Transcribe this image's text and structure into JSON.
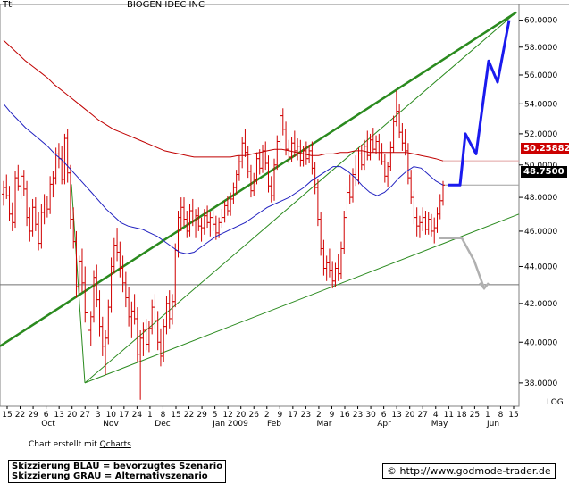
{
  "header": {
    "ticker_label": "Ttl",
    "title": "BIOGEN IDEC INC"
  },
  "footer": {
    "credit_prefix": "Chart erstellt mit ",
    "credit_link": "Qcharts",
    "legend_blue": "Skizzierung BLAU = bevorzugtes Szenario",
    "legend_gray": "Skizzierung GRAU = Alternativszenario",
    "website": "© http://www.godmode-trader.de"
  },
  "chart_data": {
    "type": "candlestick",
    "title": "BIOGEN IDEC INC",
    "y_scale": "log",
    "y_scale_label": "LOG",
    "ylim": [
      36.9,
      61.2
    ],
    "y_ticks": [
      38,
      40,
      42,
      44,
      46,
      48,
      50,
      52,
      54,
      56,
      58,
      60
    ],
    "y_tick_labels": [
      "38.0000",
      "40.0000",
      "42.0000",
      "44.0000",
      "46.0000",
      "48.0000",
      "50.0000",
      "52.0000",
      "54.0000",
      "56.0000",
      "58.0000",
      "60.0000"
    ],
    "x_day_labels": [
      "15",
      "22",
      "29",
      "6",
      "13",
      "20",
      "27",
      "3",
      "10",
      "17",
      "24",
      "1",
      "8",
      "15",
      "22",
      "29",
      "5",
      "12",
      "20",
      "26",
      "2",
      "9",
      "17",
      "23",
      "2",
      "9",
      "16",
      "23",
      "30",
      "6",
      "13",
      "20",
      "27",
      "4",
      "11",
      "18",
      "25",
      "1",
      "8",
      "15"
    ],
    "x_month_labels": [
      "Oct",
      "Nov",
      "Dec",
      "Jan 2009",
      "Feb",
      "Mar",
      "Apr",
      "May",
      "Jun"
    ],
    "last_close": 48.75,
    "last_close_label": "48.7500",
    "ma_long_value": 50.25882,
    "ma_long_label": "50.25882",
    "support_level": 43.0,
    "series": [
      {
        "type": "ohlc",
        "color": "#d00000",
        "points": [
          [
            48.2,
            49.0,
            47.5,
            48.6
          ],
          [
            48.6,
            49.4,
            47.9,
            48.1
          ],
          [
            48.1,
            48.7,
            46.6,
            47.0
          ],
          [
            47.0,
            47.7,
            46.0,
            46.5
          ],
          [
            46.5,
            49.6,
            46.2,
            49.2
          ],
          [
            49.2,
            50.0,
            48.4,
            48.7
          ],
          [
            48.7,
            49.5,
            47.9,
            49.3
          ],
          [
            49.3,
            49.7,
            48.1,
            48.5
          ],
          [
            48.5,
            49.0,
            46.3,
            46.8
          ],
          [
            46.8,
            47.4,
            45.4,
            46.0
          ],
          [
            46.0,
            47.9,
            45.7,
            47.4
          ],
          [
            47.4,
            48.0,
            46.0,
            46.4
          ],
          [
            46.4,
            47.1,
            44.9,
            45.3
          ],
          [
            45.3,
            47.6,
            45.0,
            47.1
          ],
          [
            47.1,
            48.2,
            46.4,
            47.6
          ],
          [
            47.6,
            48.1,
            46.8,
            47.3
          ],
          [
            47.3,
            49.3,
            47.0,
            48.8
          ],
          [
            48.8,
            49.6,
            48.0,
            49.2
          ],
          [
            49.2,
            51.1,
            48.8,
            50.7
          ],
          [
            50.7,
            51.4,
            49.8,
            50.4
          ],
          [
            50.4,
            51.2,
            48.8,
            49.1
          ],
          [
            49.1,
            52.0,
            48.8,
            51.7
          ],
          [
            51.7,
            52.3,
            48.9,
            49.5
          ],
          [
            49.5,
            50.0,
            46.1,
            46.7
          ],
          [
            46.7,
            47.4,
            45.0,
            45.4
          ],
          [
            45.4,
            46.0,
            42.3,
            42.9
          ],
          [
            42.9,
            44.6,
            42.5,
            44.3
          ],
          [
            44.3,
            45.0,
            42.6,
            43.1
          ],
          [
            43.1,
            44.0,
            41.0,
            41.5
          ],
          [
            41.5,
            42.4,
            40.0,
            40.6
          ],
          [
            40.6,
            41.6,
            39.8,
            41.3
          ],
          [
            41.3,
            43.8,
            41.0,
            43.4
          ],
          [
            43.4,
            44.1,
            41.8,
            42.2
          ],
          [
            42.2,
            42.7,
            40.3,
            40.8
          ],
          [
            40.8,
            41.3,
            39.3,
            39.8
          ],
          [
            39.8,
            40.6,
            38.4,
            40.2
          ],
          [
            40.2,
            42.2,
            39.9,
            41.8
          ],
          [
            41.8,
            44.5,
            41.5,
            44.0
          ],
          [
            44.0,
            45.6,
            43.6,
            45.2
          ],
          [
            45.2,
            46.2,
            44.3,
            44.8
          ],
          [
            44.8,
            45.4,
            43.4,
            43.9
          ],
          [
            43.9,
            44.6,
            42.6,
            43.1
          ],
          [
            43.1,
            43.7,
            41.8,
            42.3
          ],
          [
            42.3,
            42.9,
            40.8,
            41.3
          ],
          [
            41.3,
            42.1,
            40.2,
            41.6
          ],
          [
            41.6,
            42.5,
            40.9,
            41.2
          ],
          [
            41.2,
            41.8,
            39.0,
            39.4
          ],
          [
            39.4,
            40.6,
            37.2,
            40.2
          ],
          [
            40.2,
            41.0,
            39.3,
            40.6
          ],
          [
            40.6,
            41.2,
            39.6,
            39.9
          ],
          [
            39.9,
            41.1,
            39.5,
            40.7
          ],
          [
            40.7,
            42.2,
            40.4,
            41.8
          ],
          [
            41.8,
            42.5,
            40.7,
            41.1
          ],
          [
            41.1,
            41.6,
            39.6,
            40.0
          ],
          [
            40.0,
            40.7,
            38.8,
            39.3
          ],
          [
            39.3,
            41.2,
            39.0,
            40.8
          ],
          [
            40.8,
            42.4,
            40.4,
            42.0
          ],
          [
            42.0,
            42.7,
            40.7,
            41.2
          ],
          [
            41.2,
            42.5,
            40.9,
            42.1
          ],
          [
            42.1,
            45.3,
            41.8,
            44.9
          ],
          [
            44.9,
            47.2,
            44.5,
            46.8
          ],
          [
            46.8,
            48.0,
            46.0,
            47.4
          ],
          [
            47.4,
            48.0,
            46.3,
            46.7
          ],
          [
            46.7,
            47.2,
            45.6,
            46.0
          ],
          [
            46.0,
            47.6,
            45.7,
            47.2
          ],
          [
            47.2,
            47.9,
            46.3,
            46.6
          ],
          [
            46.6,
            47.3,
            45.6,
            46.9
          ],
          [
            46.9,
            47.4,
            46.0,
            46.3
          ],
          [
            46.3,
            46.8,
            45.4,
            46.2
          ],
          [
            46.2,
            47.3,
            45.8,
            46.9
          ],
          [
            46.9,
            47.5,
            46.2,
            46.5
          ],
          [
            46.5,
            47.1,
            45.7,
            46.8
          ],
          [
            46.8,
            47.4,
            46.0,
            46.4
          ],
          [
            46.4,
            46.9,
            45.5,
            45.9
          ],
          [
            45.9,
            46.8,
            45.6,
            46.5
          ],
          [
            46.5,
            47.3,
            46.2,
            46.8
          ],
          [
            46.8,
            47.8,
            46.5,
            47.5
          ],
          [
            47.5,
            48.1,
            46.9,
            47.2
          ],
          [
            47.2,
            48.3,
            46.9,
            47.9
          ],
          [
            47.9,
            48.9,
            47.6,
            48.6
          ],
          [
            48.6,
            49.7,
            48.2,
            49.4
          ],
          [
            49.4,
            50.6,
            49.0,
            50.2
          ],
          [
            50.2,
            51.8,
            49.8,
            51.4
          ],
          [
            51.4,
            52.3,
            50.5,
            50.8
          ],
          [
            50.8,
            51.2,
            49.2,
            49.6
          ],
          [
            49.6,
            50.0,
            48.0,
            48.4
          ],
          [
            48.4,
            49.5,
            48.1,
            49.1
          ],
          [
            49.1,
            50.8,
            48.8,
            50.4
          ],
          [
            50.4,
            51.0,
            49.4,
            49.8
          ],
          [
            49.8,
            51.3,
            49.5,
            50.9
          ],
          [
            50.9,
            51.5,
            49.7,
            50.1
          ],
          [
            50.1,
            50.6,
            48.3,
            48.7
          ],
          [
            48.7,
            49.3,
            47.7,
            48.1
          ],
          [
            48.1,
            50.4,
            47.8,
            50.0
          ],
          [
            50.0,
            51.9,
            49.7,
            51.5
          ],
          [
            51.5,
            53.6,
            51.2,
            53.2
          ],
          [
            53.2,
            53.7,
            51.9,
            52.3
          ],
          [
            52.3,
            52.8,
            50.6,
            51.0
          ],
          [
            51.0,
            51.6,
            50.1,
            50.5
          ],
          [
            50.5,
            51.8,
            50.2,
            51.4
          ],
          [
            51.4,
            52.2,
            50.5,
            50.9
          ],
          [
            50.9,
            51.7,
            50.3,
            51.2
          ],
          [
            51.2,
            51.6,
            49.9,
            50.3
          ],
          [
            50.3,
            51.2,
            49.9,
            50.9
          ],
          [
            50.9,
            51.5,
            50.0,
            50.4
          ],
          [
            50.4,
            51.3,
            50.1,
            50.9
          ],
          [
            50.9,
            51.5,
            49.4,
            49.8
          ],
          [
            49.8,
            50.2,
            48.2,
            48.6
          ],
          [
            48.6,
            49.1,
            46.3,
            46.7
          ],
          [
            46.7,
            47.1,
            44.6,
            45.0
          ],
          [
            45.0,
            45.5,
            43.5,
            43.9
          ],
          [
            43.9,
            44.6,
            43.2,
            44.2
          ],
          [
            44.2,
            45.0,
            43.4,
            43.8
          ],
          [
            43.8,
            44.3,
            42.8,
            43.2
          ],
          [
            43.2,
            44.2,
            42.9,
            43.9
          ],
          [
            43.9,
            44.7,
            43.2,
            43.6
          ],
          [
            43.6,
            45.4,
            43.3,
            45.0
          ],
          [
            45.0,
            47.2,
            44.7,
            46.8
          ],
          [
            46.8,
            48.7,
            46.5,
            48.3
          ],
          [
            48.3,
            49.4,
            47.6,
            48.0
          ],
          [
            48.0,
            49.8,
            47.7,
            49.4
          ],
          [
            49.4,
            50.6,
            48.7,
            49.1
          ],
          [
            49.1,
            51.1,
            48.8,
            50.7
          ],
          [
            50.7,
            51.3,
            49.7,
            50.0
          ],
          [
            50.0,
            51.6,
            49.7,
            51.2
          ],
          [
            51.2,
            52.2,
            50.3,
            50.6
          ],
          [
            50.6,
            52.0,
            50.3,
            51.6
          ],
          [
            51.6,
            52.4,
            50.8,
            51.0
          ],
          [
            51.0,
            51.9,
            50.7,
            51.5
          ],
          [
            51.5,
            52.0,
            50.3,
            50.7
          ],
          [
            50.7,
            51.4,
            50.0,
            50.2
          ],
          [
            50.2,
            50.7,
            48.9,
            49.3
          ],
          [
            49.3,
            50.2,
            48.6,
            49.9
          ],
          [
            49.9,
            51.5,
            49.6,
            51.1
          ],
          [
            51.1,
            53.2,
            50.8,
            52.8
          ],
          [
            52.8,
            54.9,
            52.5,
            53.5
          ],
          [
            53.5,
            54.0,
            51.7,
            52.1
          ],
          [
            52.1,
            52.7,
            50.9,
            51.4
          ],
          [
            51.4,
            52.3,
            50.6,
            50.9
          ],
          [
            50.9,
            51.4,
            48.8,
            49.2
          ],
          [
            49.2,
            49.7,
            47.6,
            48.0
          ],
          [
            48.0,
            48.4,
            46.4,
            46.8
          ],
          [
            46.8,
            47.4,
            45.7,
            46.3
          ],
          [
            46.3,
            46.9,
            45.6,
            46.5
          ],
          [
            46.5,
            47.4,
            46.0,
            46.8
          ],
          [
            46.8,
            47.2,
            45.8,
            46.1
          ],
          [
            46.1,
            47.1,
            45.8,
            46.7
          ],
          [
            46.7,
            47.0,
            45.7,
            46.0
          ],
          [
            46.0,
            46.8,
            45.3,
            46.2
          ],
          [
            46.2,
            47.4,
            45.9,
            47.0
          ],
          [
            47.0,
            48.2,
            46.7,
            47.8
          ],
          [
            47.8,
            49.0,
            47.5,
            48.75
          ]
        ]
      },
      {
        "name": "",
        "type": "line",
        "color": "#2020c0",
        "values": [
          54.0,
          53.4,
          52.9,
          52.4,
          52.0,
          51.6,
          51.2,
          50.7,
          50.3,
          49.8,
          49.3,
          48.8,
          48.3,
          47.8,
          47.3,
          46.9,
          46.5,
          46.3,
          46.2,
          46.1,
          45.9,
          45.7,
          45.4,
          45.1,
          44.8,
          44.7,
          44.8,
          45.1,
          45.4,
          45.7,
          45.9,
          46.1,
          46.3,
          46.5,
          46.8,
          47.1,
          47.4,
          47.6,
          47.8,
          48.0,
          48.3,
          48.6,
          49.0,
          49.3,
          49.6,
          49.9,
          49.9,
          49.6,
          49.2,
          48.7,
          48.3,
          48.1,
          48.3,
          48.7,
          49.2,
          49.6,
          49.9,
          49.8,
          49.4,
          49.0,
          48.75
        ]
      },
      {
        "name": "",
        "type": "line",
        "color": "#c00000",
        "values": [
          58.5,
          58.0,
          57.5,
          57.0,
          56.6,
          56.2,
          55.8,
          55.3,
          54.9,
          54.5,
          54.1,
          53.7,
          53.3,
          52.9,
          52.6,
          52.3,
          52.1,
          51.9,
          51.7,
          51.5,
          51.3,
          51.1,
          50.9,
          50.8,
          50.7,
          50.6,
          50.5,
          50.5,
          50.5,
          50.5,
          50.5,
          50.5,
          50.6,
          50.6,
          50.7,
          50.8,
          50.9,
          51.0,
          51.0,
          50.9,
          50.8,
          50.7,
          50.6,
          50.6,
          50.7,
          50.7,
          50.8,
          50.8,
          50.9,
          50.9,
          50.8,
          50.8,
          50.8,
          50.8,
          50.8,
          50.8,
          50.7,
          50.6,
          50.5,
          50.4,
          50.25882
        ]
      }
    ],
    "trend_lines": [
      {
        "color": "#2a8a1e",
        "from": 39.8,
        "to": 60.6
      },
      {
        "color": "#2a8a1e",
        "from": 38.0,
        "to": 60.6
      },
      {
        "color": "#2a8a1e",
        "from": 38.0,
        "to": 47.0
      }
    ],
    "scenarios": {
      "blue": [
        48.75,
        48.75,
        52.0,
        50.7,
        57.0,
        55.5,
        60.0
      ],
      "gray": [
        45.6,
        45.6,
        44.3,
        42.8
      ]
    }
  }
}
